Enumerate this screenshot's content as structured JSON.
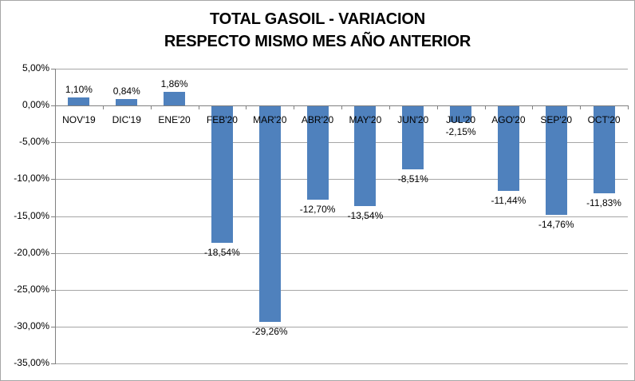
{
  "chart_data": {
    "type": "bar",
    "title_lines": [
      "TOTAL GASOIL - VARIACION",
      "RESPECTO MISMO MES AÑO ANTERIOR"
    ],
    "categories": [
      "NOV'19",
      "DIC'19",
      "ENE'20",
      "FEB'20",
      "MAR'20",
      "ABR'20",
      "MAY'20",
      "JUN'20",
      "JUL'20",
      "AGO'20",
      "SEP'20",
      "OCT'20"
    ],
    "values": [
      1.1,
      0.84,
      1.86,
      -18.54,
      -29.26,
      -12.7,
      -13.54,
      -8.51,
      -2.15,
      -11.44,
      -14.76,
      -11.83
    ],
    "value_labels": [
      "1,10%",
      "0,84%",
      "1,86%",
      "-18,54%",
      "-29,26%",
      "-12,70%",
      "-13,54%",
      "-8,51%",
      "-2,15%",
      "-11,44%",
      "-14,76%",
      "-11,83%"
    ],
    "xlabel": "",
    "ylabel": "",
    "ylim": [
      -35,
      5
    ],
    "y_axis": {
      "tick_values": [
        5,
        0,
        -5,
        -10,
        -15,
        -20,
        -25,
        -30,
        -35
      ],
      "tick_labels": [
        "5,00%",
        "0,00%",
        "-5,00%",
        "-10,00%",
        "-15,00%",
        "-20,00%",
        "-25,00%",
        "-30,00%",
        "-35,00%"
      ]
    },
    "grid": true,
    "legend": "none",
    "colors": {
      "bar": "#4F81BD",
      "axis": "#808080",
      "gridline": "#A6A6A6",
      "text": "#000000",
      "background": "#FFFFFF",
      "frame_border": "#A6A6A6"
    }
  }
}
